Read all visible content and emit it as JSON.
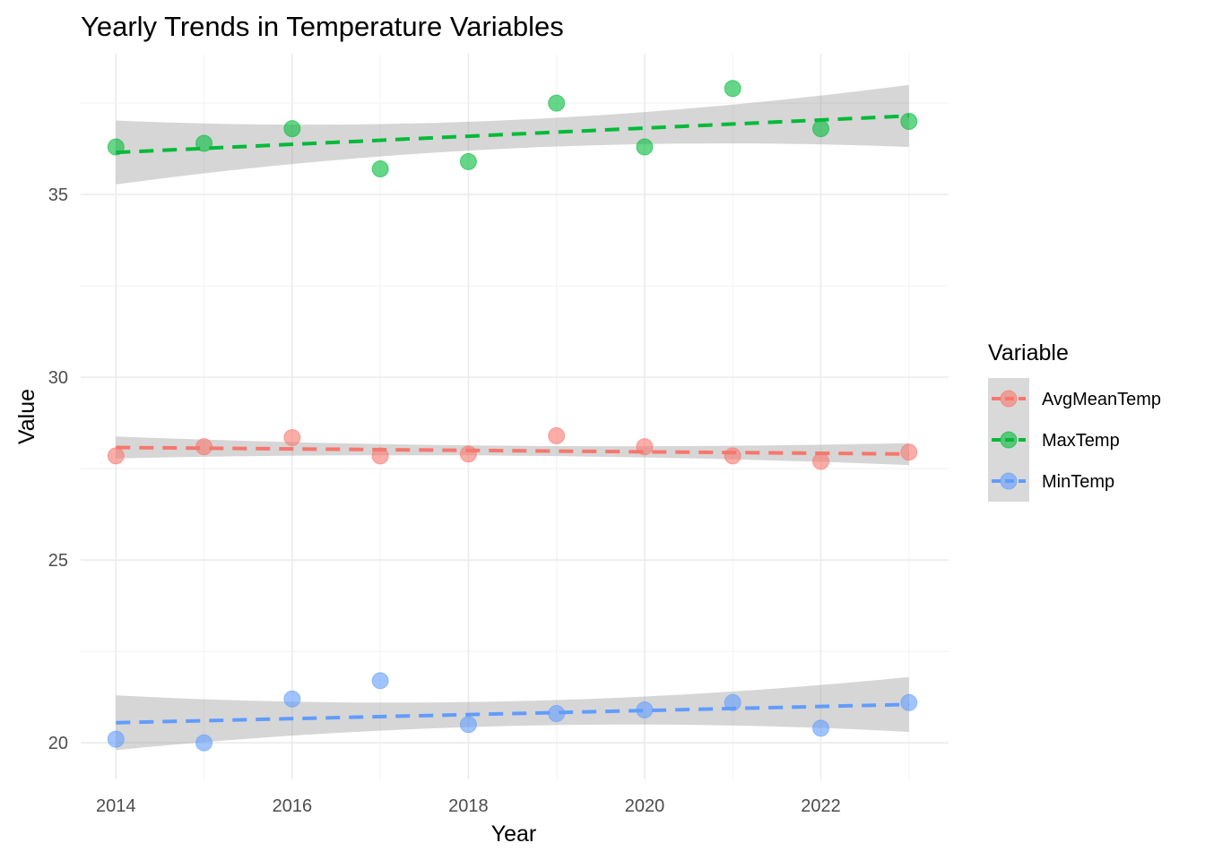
{
  "chart_data": {
    "type": "scatter",
    "title": "Yearly Trends in Temperature Variables",
    "xlabel": "Year",
    "ylabel": "Value",
    "xlim": [
      2013.6,
      2023.45
    ],
    "ylim": [
      19.0,
      38.85
    ],
    "x_ticks": [
      2014,
      2016,
      2018,
      2020,
      2022
    ],
    "x_tick_labels": [
      "2014",
      "2016",
      "2018",
      "2020",
      "2022"
    ],
    "y_ticks": [
      20,
      25,
      30,
      35
    ],
    "y_tick_labels": [
      "20",
      "25",
      "30",
      "35"
    ],
    "grid": true,
    "legend": {
      "title": "Variable",
      "position": "right"
    },
    "x": [
      2014,
      2015,
      2016,
      2017,
      2018,
      2019,
      2020,
      2021,
      2022,
      2023
    ],
    "series": [
      {
        "name": "AvgMeanTemp",
        "color": "#F8766D",
        "values": [
          27.85,
          28.1,
          28.35,
          27.85,
          27.9,
          28.4,
          28.1,
          27.85,
          27.7,
          27.95
        ],
        "trend": {
          "start": 28.08,
          "end": 27.9
        },
        "band": {
          "start_lo": 27.8,
          "start_hi": 28.4,
          "end_lo": 27.6,
          "end_hi": 28.2
        }
      },
      {
        "name": "MaxTemp",
        "color": "#00BA38",
        "values": [
          36.3,
          36.4,
          36.8,
          35.7,
          35.9,
          37.5,
          36.3,
          37.9,
          36.8,
          37.0
        ],
        "trend": {
          "start": 36.15,
          "end": 37.15
        },
        "band": {
          "start_lo": 35.3,
          "start_hi": 37.05,
          "end_lo": 36.3,
          "end_hi": 38.0
        }
      },
      {
        "name": "MinTemp",
        "color": "#619CFF",
        "values": [
          20.1,
          20.0,
          21.2,
          21.7,
          20.5,
          20.8,
          20.9,
          21.1,
          20.4,
          21.1
        ],
        "trend": {
          "start": 20.55,
          "end": 21.05
        },
        "band": {
          "start_lo": 19.8,
          "start_hi": 21.3,
          "end_lo": 20.3,
          "end_hi": 21.8
        }
      }
    ]
  }
}
